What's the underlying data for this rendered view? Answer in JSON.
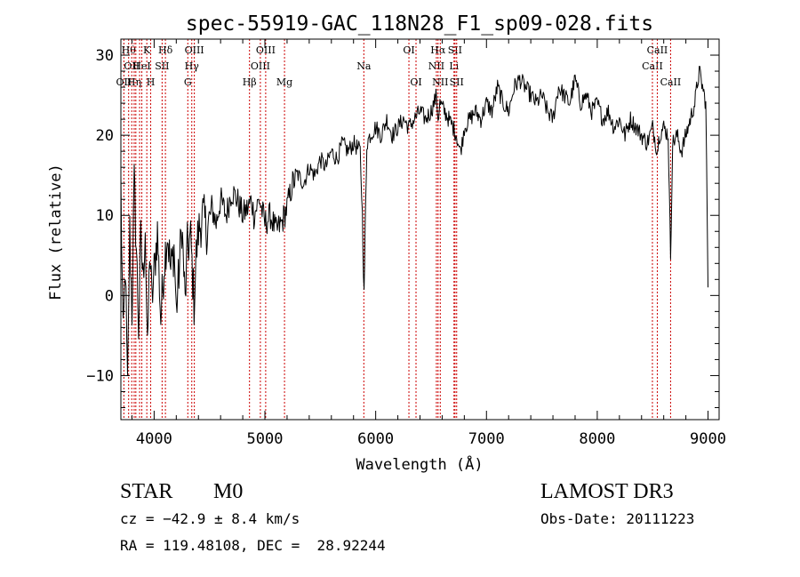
{
  "chart_data": {
    "type": "line",
    "title": "spec-55919-GAC_118N28_F1_sp09-028.fits",
    "xlabel": "Wavelength (Å)",
    "ylabel": "Flux (relative)",
    "xlim": [
      3700,
      9100
    ],
    "ylim": [
      -15.5,
      32
    ],
    "x_ticks": [
      4000,
      5000,
      6000,
      7000,
      8000,
      9000
    ],
    "x_tick_labels": [
      "4000",
      "5000",
      "6000",
      "7000",
      "8000",
      "9000"
    ],
    "y_ticks": [
      -10,
      0,
      10,
      20,
      30
    ],
    "y_tick_labels": [
      "−10",
      "0",
      "10",
      "20",
      "30"
    ],
    "series": [
      {
        "name": "spectrum",
        "color": "#000000",
        "anchors": [
          [
            3700,
            14
          ],
          [
            3720,
            -6
          ],
          [
            3740,
            4
          ],
          [
            3760,
            -12
          ],
          [
            3780,
            8
          ],
          [
            3800,
            -2
          ],
          [
            3820,
            14
          ],
          [
            3840,
            6
          ],
          [
            3860,
            -4
          ],
          [
            3880,
            7
          ],
          [
            3900,
            2
          ],
          [
            3920,
            9
          ],
          [
            3940,
            -8
          ],
          [
            3960,
            6
          ],
          [
            3980,
            -1
          ],
          [
            4000,
            3
          ],
          [
            4030,
            8
          ],
          [
            4060,
            -3
          ],
          [
            4090,
            4
          ],
          [
            4120,
            8
          ],
          [
            4150,
            3
          ],
          [
            4180,
            6
          ],
          [
            4200,
            -2
          ],
          [
            4230,
            4
          ],
          [
            4250,
            9
          ],
          [
            4280,
            -1
          ],
          [
            4300,
            6
          ],
          [
            4330,
            7
          ],
          [
            4360,
            -1
          ],
          [
            4380,
            5
          ],
          [
            4400,
            8
          ],
          [
            4440,
            10
          ],
          [
            4480,
            8
          ],
          [
            4520,
            11
          ],
          [
            4560,
            9
          ],
          [
            4600,
            12
          ],
          [
            4650,
            10
          ],
          [
            4700,
            13
          ],
          [
            4750,
            12
          ],
          [
            4800,
            10
          ],
          [
            4850,
            11
          ],
          [
            4880,
            12
          ],
          [
            4900,
            10
          ],
          [
            4950,
            12
          ],
          [
            5000,
            9
          ],
          [
            5050,
            10
          ],
          [
            5100,
            8
          ],
          [
            5150,
            9
          ],
          [
            5200,
            11
          ],
          [
            5250,
            14
          ],
          [
            5300,
            15
          ],
          [
            5350,
            14
          ],
          [
            5400,
            16
          ],
          [
            5450,
            15
          ],
          [
            5500,
            17
          ],
          [
            5550,
            16
          ],
          [
            5600,
            18
          ],
          [
            5650,
            17
          ],
          [
            5700,
            19
          ],
          [
            5750,
            18
          ],
          [
            5800,
            19
          ],
          [
            5860,
            18
          ],
          [
            5880,
            10
          ],
          [
            5895,
            0
          ],
          [
            5905,
            8
          ],
          [
            5920,
            19
          ],
          [
            5950,
            20
          ],
          [
            6000,
            21
          ],
          [
            6050,
            20
          ],
          [
            6100,
            22
          ],
          [
            6150,
            20
          ],
          [
            6200,
            21
          ],
          [
            6250,
            22
          ],
          [
            6300,
            21
          ],
          [
            6350,
            22
          ],
          [
            6400,
            23
          ],
          [
            6450,
            22
          ],
          [
            6500,
            23
          ],
          [
            6550,
            25
          ],
          [
            6563,
            22
          ],
          [
            6580,
            24
          ],
          [
            6620,
            23
          ],
          [
            6660,
            22
          ],
          [
            6700,
            21
          ],
          [
            6730,
            20
          ],
          [
            6760,
            18
          ],
          [
            6780,
            19
          ],
          [
            6800,
            21
          ],
          [
            6850,
            22
          ],
          [
            6900,
            23
          ],
          [
            6950,
            22
          ],
          [
            7000,
            24
          ],
          [
            7050,
            23
          ],
          [
            7100,
            26
          ],
          [
            7150,
            24
          ],
          [
            7200,
            23
          ],
          [
            7250,
            26
          ],
          [
            7300,
            27
          ],
          [
            7350,
            26
          ],
          [
            7400,
            25
          ],
          [
            7450,
            24
          ],
          [
            7500,
            25
          ],
          [
            7550,
            23
          ],
          [
            7600,
            22
          ],
          [
            7650,
            26
          ],
          [
            7700,
            25
          ],
          [
            7750,
            24
          ],
          [
            7800,
            27
          ],
          [
            7850,
            24
          ],
          [
            7900,
            25
          ],
          [
            7950,
            23
          ],
          [
            8000,
            24
          ],
          [
            8050,
            22
          ],
          [
            8100,
            23
          ],
          [
            8150,
            21
          ],
          [
            8200,
            22
          ],
          [
            8250,
            20
          ],
          [
            8300,
            22
          ],
          [
            8350,
            21
          ],
          [
            8400,
            20
          ],
          [
            8450,
            19
          ],
          [
            8500,
            21
          ],
          [
            8542,
            18
          ],
          [
            8560,
            20
          ],
          [
            8600,
            21
          ],
          [
            8640,
            20
          ],
          [
            8662,
            5
          ],
          [
            8680,
            19
          ],
          [
            8720,
            20
          ],
          [
            8760,
            18
          ],
          [
            8800,
            20
          ],
          [
            8840,
            22
          ],
          [
            8880,
            24
          ],
          [
            8920,
            28
          ],
          [
            8950,
            26
          ],
          [
            8980,
            24
          ],
          [
            9000,
            1
          ]
        ]
      }
    ],
    "line_markers": [
      {
        "wavelength": 3727,
        "label": "OII",
        "row": 2
      },
      {
        "wavelength": 3770,
        "label": "Hθ",
        "row": 0
      },
      {
        "wavelength": 3798,
        "label": "OII",
        "row": 1
      },
      {
        "wavelength": 3820,
        "label": "Hη",
        "row": 2
      },
      {
        "wavelength": 3835,
        "label": "",
        "row": 0
      },
      {
        "wavelength": 3869,
        "label": "",
        "row": 0
      },
      {
        "wavelength": 3889,
        "label": "HeI",
        "row": 1
      },
      {
        "wavelength": 3934,
        "label": "K",
        "row": 0
      },
      {
        "wavelength": 3969,
        "label": "H",
        "row": 2
      },
      {
        "wavelength": 4072,
        "label": "SII",
        "row": 1
      },
      {
        "wavelength": 4102,
        "label": "Hδ",
        "row": 0
      },
      {
        "wavelength": 4304,
        "label": "G",
        "row": 2
      },
      {
        "wavelength": 4340,
        "label": "Hγ",
        "row": 1
      },
      {
        "wavelength": 4363,
        "label": "OIII",
        "row": 0
      },
      {
        "wavelength": 4861,
        "label": "Hβ",
        "row": 2
      },
      {
        "wavelength": 4959,
        "label": "OIII",
        "row": 1
      },
      {
        "wavelength": 5007,
        "label": "OIII",
        "row": 0
      },
      {
        "wavelength": 5177,
        "label": "Mg",
        "row": 2
      },
      {
        "wavelength": 5893,
        "label": "Na",
        "row": 1
      },
      {
        "wavelength": 6300,
        "label": "OI",
        "row": 0
      },
      {
        "wavelength": 6364,
        "label": "OI",
        "row": 2
      },
      {
        "wavelength": 6548,
        "label": "NII",
        "row": 1
      },
      {
        "wavelength": 6563,
        "label": "Hα",
        "row": 0
      },
      {
        "wavelength": 6583,
        "label": "NII",
        "row": 2
      },
      {
        "wavelength": 6707,
        "label": "Li",
        "row": 1
      },
      {
        "wavelength": 6716,
        "label": "SII",
        "row": 0
      },
      {
        "wavelength": 6731,
        "label": "SII",
        "row": 2
      },
      {
        "wavelength": 8498,
        "label": "CaII",
        "row": 1
      },
      {
        "wavelength": 8542,
        "label": "CaII",
        "row": 0
      },
      {
        "wavelength": 8662,
        "label": "CaII",
        "row": 2
      }
    ],
    "marker_color": "#cc0000"
  },
  "info": {
    "class": "STAR",
    "subclass": "M0",
    "survey": "LAMOST DR3",
    "cz": "cz = −42.9 ± 8.4 km/s",
    "obs_date": "Obs-Date: 20111223",
    "coords": "RA = 119.48108, DEC =  28.92244"
  }
}
